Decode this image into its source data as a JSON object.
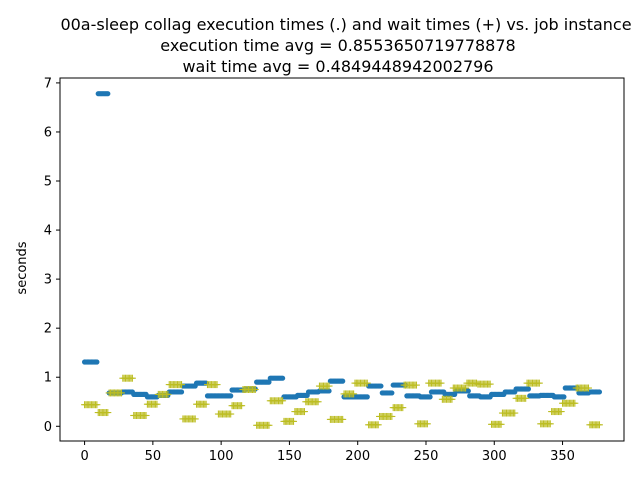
{
  "chart_data": {
    "type": "scatter",
    "title_lines": [
      "00a-sleep collag execution times (.) and wait times (+) vs. job instance",
      "execution time avg = 0.8553650719778878",
      "wait time avg = 0.4849448942002796"
    ],
    "xlabel": "",
    "ylabel": "seconds",
    "xlim": [
      -18,
      395
    ],
    "ylim": [
      -0.3,
      7.1
    ],
    "xticks": [
      0,
      50,
      100,
      150,
      200,
      250,
      300,
      350
    ],
    "yticks": [
      0,
      1,
      2,
      3,
      4,
      5,
      6,
      7
    ],
    "grid": false,
    "colors": {
      "execution": "#1f77b4",
      "wait": "#bcbd22"
    },
    "series": [
      {
        "marker": ".",
        "segments": [
          [
            0,
            10,
            1.31
          ],
          [
            10,
            18,
            6.78
          ],
          [
            18,
            28,
            0.68
          ],
          [
            28,
            36,
            0.7
          ],
          [
            36,
            46,
            0.65
          ],
          [
            46,
            54,
            0.6
          ],
          [
            54,
            62,
            0.63
          ],
          [
            62,
            72,
            0.7
          ],
          [
            72,
            82,
            0.82
          ],
          [
            82,
            90,
            0.88
          ],
          [
            90,
            108,
            0.62
          ],
          [
            108,
            118,
            0.74
          ],
          [
            118,
            126,
            0.76
          ],
          [
            126,
            136,
            0.9
          ],
          [
            136,
            146,
            0.98
          ],
          [
            146,
            156,
            0.6
          ],
          [
            156,
            164,
            0.63
          ],
          [
            164,
            172,
            0.7
          ],
          [
            172,
            180,
            0.72
          ],
          [
            180,
            190,
            0.92
          ],
          [
            190,
            208,
            0.6
          ],
          [
            208,
            218,
            0.82
          ],
          [
            218,
            226,
            0.68
          ],
          [
            226,
            236,
            0.84
          ],
          [
            236,
            246,
            0.62
          ],
          [
            246,
            254,
            0.6
          ],
          [
            254,
            264,
            0.7
          ],
          [
            264,
            272,
            0.65
          ],
          [
            272,
            282,
            0.72
          ],
          [
            282,
            290,
            0.62
          ],
          [
            290,
            298,
            0.6
          ],
          [
            298,
            308,
            0.65
          ],
          [
            308,
            316,
            0.7
          ],
          [
            316,
            326,
            0.76
          ],
          [
            326,
            334,
            0.62
          ],
          [
            334,
            344,
            0.63
          ],
          [
            344,
            352,
            0.6
          ],
          [
            352,
            362,
            0.78
          ],
          [
            362,
            370,
            0.68
          ],
          [
            370,
            378,
            0.7
          ]
        ]
      },
      {
        "marker": "+",
        "segments": [
          [
            0,
            10,
            0.44
          ],
          [
            10,
            18,
            0.28
          ],
          [
            18,
            28,
            0.68
          ],
          [
            28,
            36,
            0.98
          ],
          [
            36,
            46,
            0.22
          ],
          [
            46,
            54,
            0.45
          ],
          [
            54,
            62,
            0.65
          ],
          [
            62,
            72,
            0.85
          ],
          [
            72,
            82,
            0.15
          ],
          [
            82,
            90,
            0.45
          ],
          [
            90,
            98,
            0.85
          ],
          [
            98,
            108,
            0.25
          ],
          [
            108,
            116,
            0.42
          ],
          [
            116,
            126,
            0.75
          ],
          [
            126,
            136,
            0.02
          ],
          [
            136,
            146,
            0.52
          ],
          [
            146,
            154,
            0.1
          ],
          [
            154,
            162,
            0.3
          ],
          [
            162,
            172,
            0.5
          ],
          [
            172,
            180,
            0.82
          ],
          [
            180,
            190,
            0.14
          ],
          [
            190,
            198,
            0.66
          ],
          [
            198,
            208,
            0.88
          ],
          [
            208,
            216,
            0.03
          ],
          [
            216,
            226,
            0.2
          ],
          [
            226,
            234,
            0.38
          ],
          [
            234,
            244,
            0.84
          ],
          [
            244,
            252,
            0.05
          ],
          [
            252,
            262,
            0.88
          ],
          [
            262,
            270,
            0.55
          ],
          [
            270,
            280,
            0.78
          ],
          [
            280,
            288,
            0.88
          ],
          [
            288,
            298,
            0.86
          ],
          [
            298,
            306,
            0.04
          ],
          [
            306,
            316,
            0.27
          ],
          [
            316,
            324,
            0.57
          ],
          [
            324,
            334,
            0.88
          ],
          [
            334,
            342,
            0.05
          ],
          [
            342,
            350,
            0.3
          ],
          [
            350,
            360,
            0.47
          ],
          [
            360,
            370,
            0.78
          ],
          [
            370,
            378,
            0.03
          ]
        ]
      }
    ]
  }
}
